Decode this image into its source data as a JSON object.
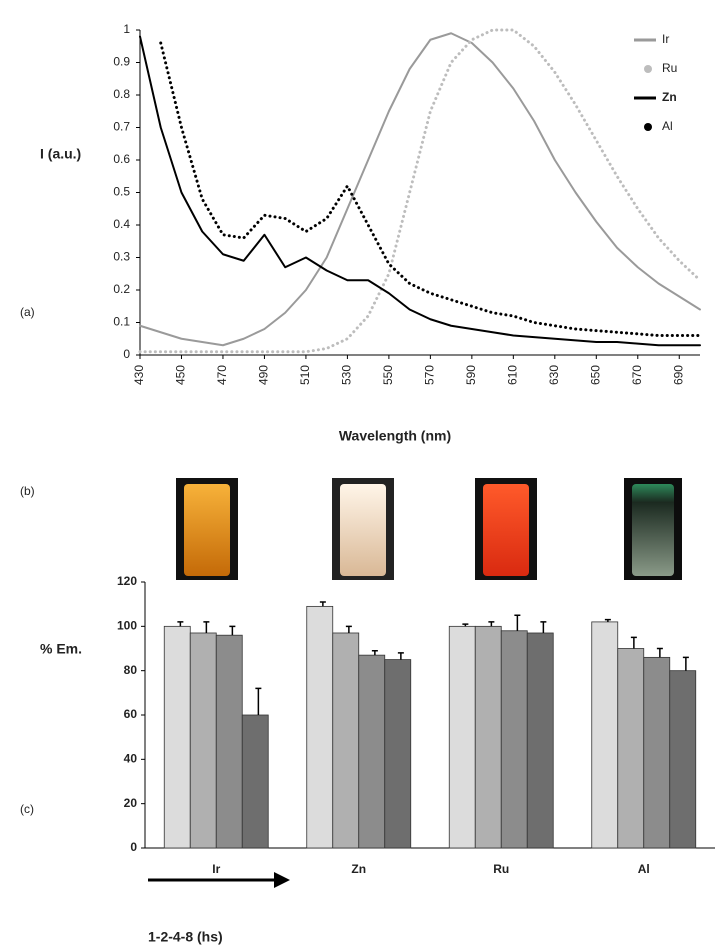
{
  "chart_data": [
    {
      "type": "line",
      "panel_label": "(a)",
      "y_label": "I (a.u.)",
      "x_label": "Wavelength (nm)",
      "x": [
        430,
        440,
        450,
        460,
        470,
        480,
        490,
        500,
        510,
        520,
        530,
        540,
        550,
        560,
        570,
        580,
        590,
        600,
        610,
        620,
        630,
        640,
        650,
        660,
        670,
        680,
        690,
        700
      ],
      "series": [
        {
          "name": "Ir",
          "color": "#9a9a9a",
          "line_style": "solid",
          "values": [
            0.09,
            0.07,
            0.05,
            0.04,
            0.03,
            0.05,
            0.08,
            0.13,
            0.2,
            0.3,
            0.45,
            0.6,
            0.75,
            0.88,
            0.97,
            0.99,
            0.96,
            0.9,
            0.82,
            0.72,
            0.6,
            0.5,
            0.41,
            0.33,
            0.27,
            0.22,
            0.18,
            0.14
          ]
        },
        {
          "name": "Ru",
          "color": "#bdbdbd",
          "line_style": "dotted",
          "values": [
            0.01,
            0.01,
            0.01,
            0.01,
            0.01,
            0.01,
            0.01,
            0.01,
            0.01,
            0.02,
            0.05,
            0.12,
            0.25,
            0.5,
            0.75,
            0.9,
            0.97,
            1.0,
            1.0,
            0.95,
            0.87,
            0.77,
            0.66,
            0.55,
            0.45,
            0.36,
            0.29,
            0.23
          ]
        },
        {
          "name": "Zn",
          "color": "#000000",
          "line_style": "solid",
          "values": [
            0.98,
            0.7,
            0.5,
            0.38,
            0.31,
            0.29,
            0.37,
            0.27,
            0.3,
            0.26,
            0.23,
            0.23,
            0.19,
            0.14,
            0.11,
            0.09,
            0.08,
            0.07,
            0.06,
            0.055,
            0.05,
            0.045,
            0.04,
            0.04,
            0.035,
            0.03,
            0.03,
            0.03
          ]
        },
        {
          "name": "Al",
          "color": "#000000",
          "line_style": "dotted",
          "values": [
            null,
            0.96,
            0.7,
            0.48,
            0.37,
            0.36,
            0.43,
            0.42,
            0.38,
            0.42,
            0.52,
            0.4,
            0.28,
            0.22,
            0.19,
            0.17,
            0.15,
            0.13,
            0.12,
            0.1,
            0.09,
            0.08,
            0.075,
            0.07,
            0.065,
            0.06,
            0.06,
            0.06
          ]
        }
      ],
      "xlim": [
        430,
        700
      ],
      "xticks": [
        430,
        450,
        470,
        490,
        510,
        530,
        550,
        570,
        590,
        610,
        630,
        650,
        670,
        690
      ],
      "ylim": [
        0,
        1
      ],
      "yticks": [
        0,
        0.1,
        0.2,
        0.3,
        0.4,
        0.5,
        0.6,
        0.7,
        0.8,
        0.9,
        1
      ],
      "legend": "top-right"
    },
    {
      "type": "bar",
      "panel_label": "(c)",
      "image_label": "(b)",
      "y_label": "% Em.",
      "annotation": "1-2-4-8 (hs)",
      "categories": [
        "Ir",
        "Zn",
        "Ru",
        "Al"
      ],
      "series": [
        {
          "color": "#dcdcdc",
          "values": [
            100,
            109,
            100,
            102
          ],
          "errors": [
            2,
            2,
            1,
            1
          ]
        },
        {
          "color": "#b0b0b0",
          "values": [
            97,
            97,
            100,
            90
          ],
          "errors": [
            5,
            3,
            2,
            5
          ]
        },
        {
          "color": "#8c8c8c",
          "values": [
            96,
            87,
            98,
            86
          ],
          "errors": [
            4,
            2,
            7,
            4
          ]
        },
        {
          "color": "#6e6e6e",
          "values": [
            60,
            85,
            97,
            80
          ],
          "errors": [
            12,
            3,
            5,
            6
          ]
        }
      ],
      "ylim": [
        0,
        120
      ],
      "yticks": [
        0,
        20,
        40,
        60,
        80,
        100,
        120
      ]
    }
  ]
}
